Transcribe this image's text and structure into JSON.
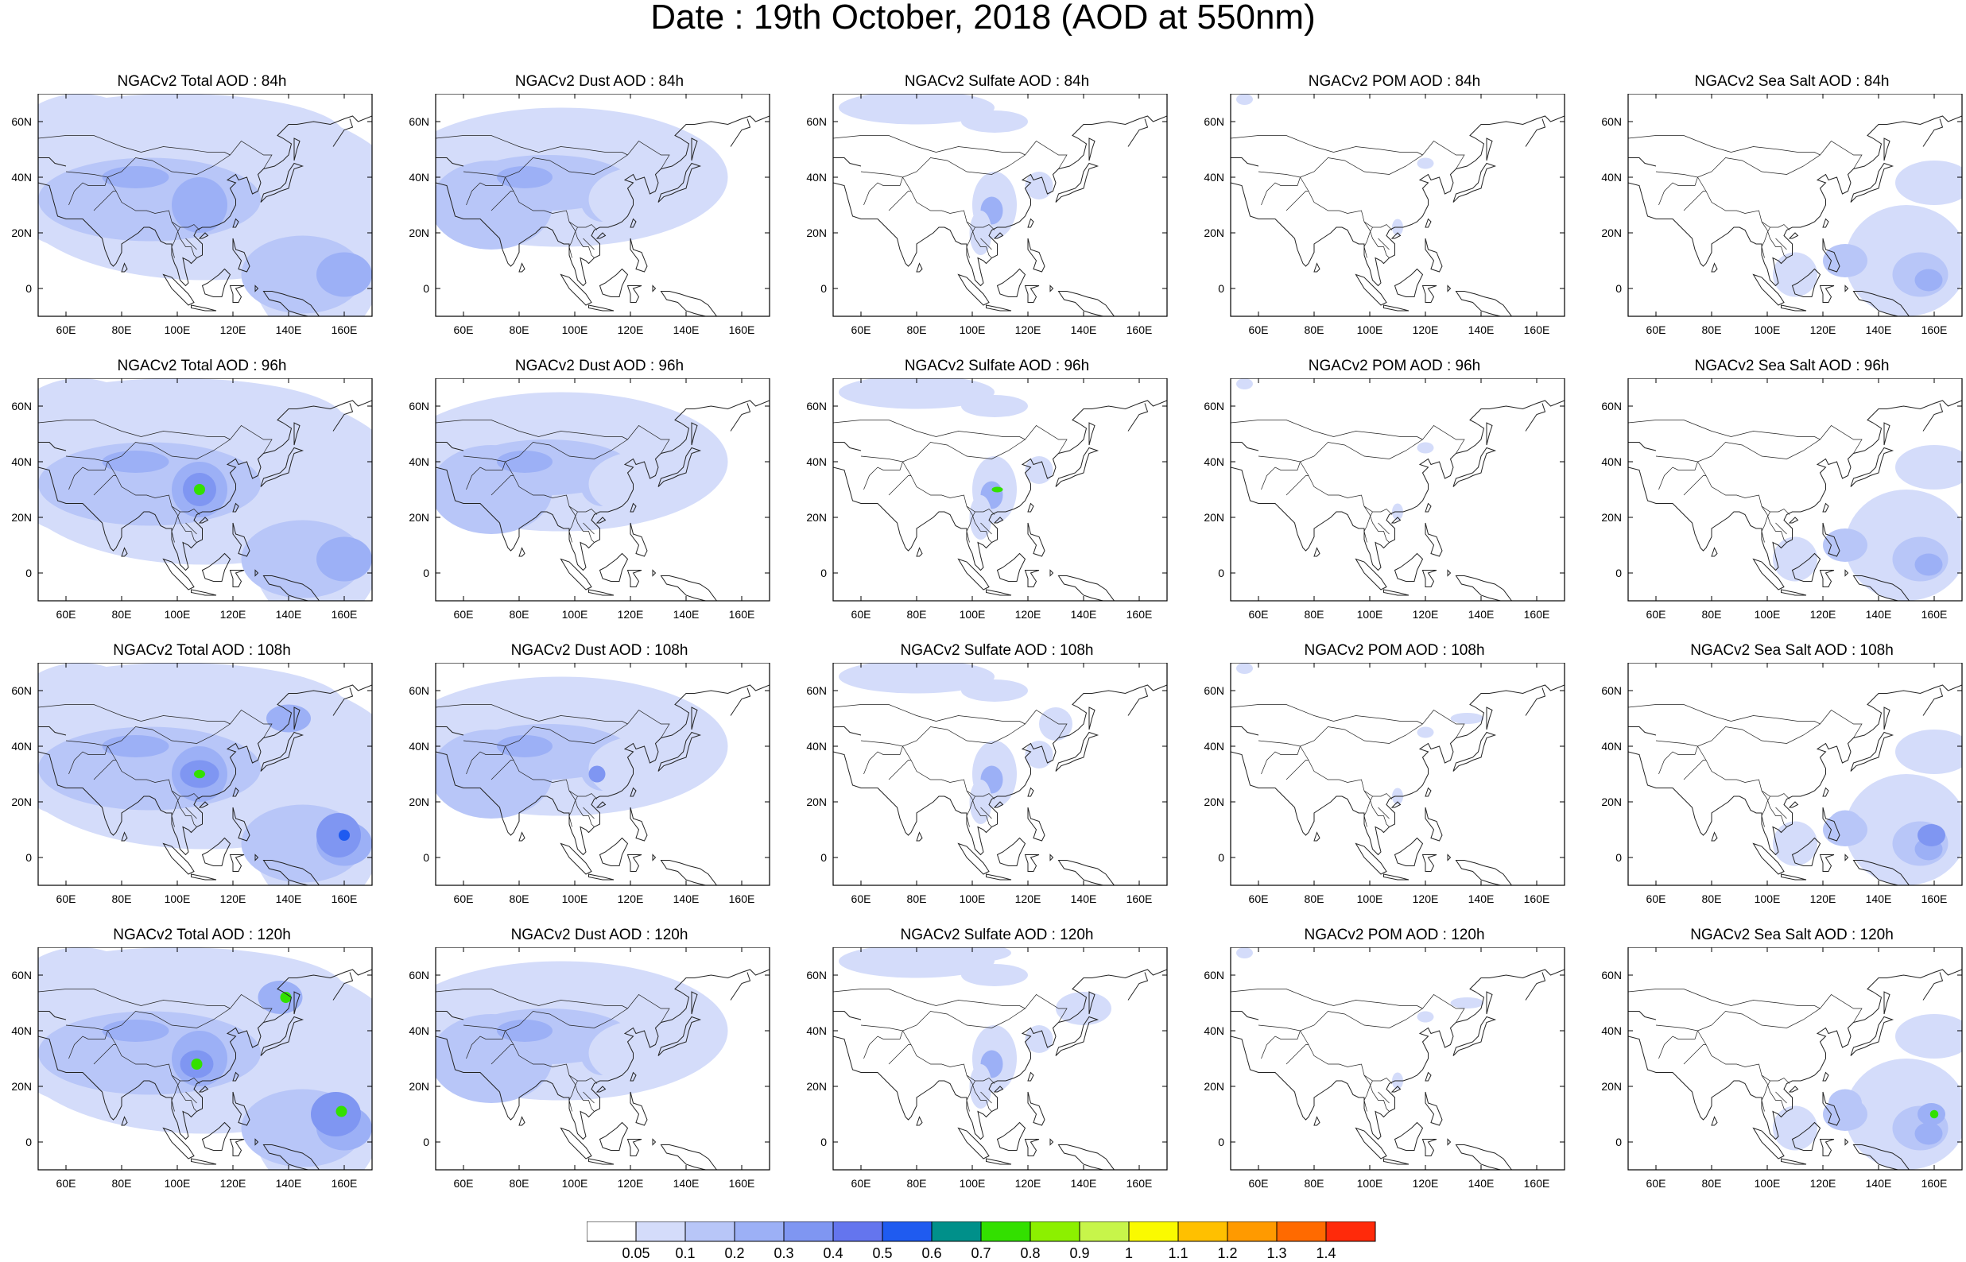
{
  "title": "Date : 19th October, 2018 (AOD at 550nm)",
  "axes": {
    "lon_ticks": [
      "60E",
      "80E",
      "100E",
      "120E",
      "140E",
      "160E"
    ],
    "lat_ticks": [
      "60N",
      "40N",
      "20N",
      "0"
    ],
    "lon_range": [
      50,
      170
    ],
    "lat_range": [
      -10,
      70
    ]
  },
  "species": [
    "total",
    "dust",
    "sulfate",
    "pom",
    "seasalt"
  ],
  "rows": [
    {
      "forecast_hour": "84h",
      "titles": [
        "NGACv2 Total AOD : 84h",
        "NGACv2 Dust AOD : 84h",
        "NGACv2 Sulfate AOD : 84h",
        "NGACv2 POM AOD : 84h",
        "NGACv2 Sea Salt AOD : 84h"
      ]
    },
    {
      "forecast_hour": "96h",
      "titles": [
        "NGACv2 Total AOD : 96h",
        "NGACv2 Dust AOD : 96h",
        "NGACv2 Sulfate AOD : 96h",
        "NGACv2 POM AOD : 96h",
        "NGACv2 Sea Salt AOD : 96h"
      ]
    },
    {
      "forecast_hour": "108h",
      "titles": [
        "NGACv2 Total AOD : 108h",
        "NGACv2 Dust AOD : 108h",
        "NGACv2 Sulfate AOD : 108h",
        "NGACv2 POM AOD : 108h",
        "NGACv2 Sea Salt AOD : 108h"
      ]
    },
    {
      "forecast_hour": "120h",
      "titles": [
        "NGACv2 Total AOD : 120h",
        "NGACv2 Dust AOD : 120h",
        "NGACv2 Sulfate AOD : 120h",
        "NGACv2 POM AOD : 120h",
        "NGACv2 Sea Salt  AOD : 120h"
      ]
    }
  ],
  "colorbar": {
    "colors": [
      "#ffffff",
      "#d4dcfa",
      "#b8c6f8",
      "#9cb0f6",
      "#7f96f2",
      "#6475ee",
      "#1f5bf0",
      "#00908a",
      "#33e000",
      "#8cf000",
      "#c7f54a",
      "#fafa00",
      "#ffc000",
      "#ff9a00",
      "#ff6a00",
      "#ff2a0a"
    ],
    "labels": [
      "0.05",
      "0.1",
      "0.2",
      "0.3",
      "0.4",
      "0.5",
      "0.6",
      "0.7",
      "0.8",
      "0.9",
      "1",
      "1.1",
      "1.2",
      "1.3",
      "1.4"
    ]
  }
}
